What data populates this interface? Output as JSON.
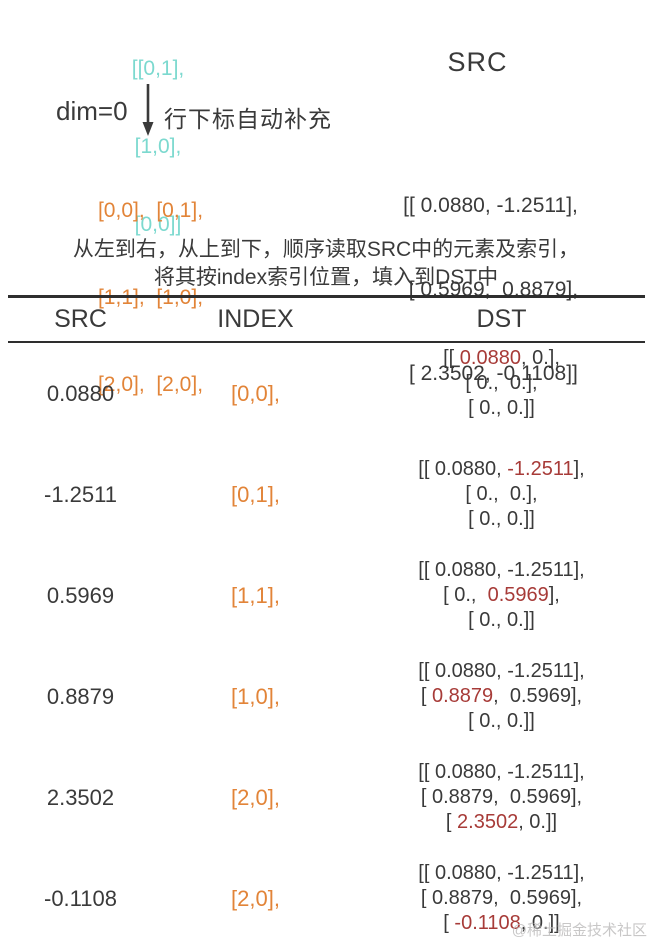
{
  "colors": {
    "cyan": "#7cd9cf",
    "orange": "#e28438",
    "red": "#a73b38",
    "text": "#3a3a3a",
    "watermark": "#c3c2c2"
  },
  "top": {
    "index_matrix": [
      "[[0,1],",
      "[1,0],",
      "[0,0]]"
    ],
    "dim_label": "dim=0",
    "arrow_note": "行下标自动补充",
    "expanded_index": [
      "[0,0],  [0,1],",
      "[1,1],  [1,0],",
      "[2,0],  [2,0],"
    ],
    "src_title": "SRC",
    "src_matrix": [
      "[[ 0.0880, -1.2511],",
      " [ 0.5969,  0.8879],",
      " [ 2.3502, -0.1108]]"
    ]
  },
  "description": [
    "从左到右，从上到下，顺序读取SRC中的元素及索引，",
    "将其按index索引位置，填入到DST中"
  ],
  "table": {
    "headers": [
      "SRC",
      "INDEX",
      "DST"
    ],
    "rows": [
      {
        "src": "0.0880",
        "index": "[0,0],",
        "dst": [
          [
            {
              "t": "[[ "
            },
            {
              "t": "0.0880",
              "hl": true
            },
            {
              "t": ", 0.],"
            }
          ],
          [
            {
              "t": "[ 0.,  0.],"
            }
          ],
          [
            {
              "t": "[ 0., 0.]]"
            }
          ]
        ]
      },
      {
        "src": "-1.2511",
        "index": "[0,1],",
        "dst": [
          [
            {
              "t": "[[ 0.0880, "
            },
            {
              "t": "-1.2511",
              "hl": true
            },
            {
              "t": "],"
            }
          ],
          [
            {
              "t": "[ 0.,  0.],"
            }
          ],
          [
            {
              "t": "[ 0., 0.]]"
            }
          ]
        ]
      },
      {
        "src": "0.5969",
        "index": "[1,1],",
        "dst": [
          [
            {
              "t": "[[ 0.0880, -1.2511],"
            }
          ],
          [
            {
              "t": "[ 0.,  "
            },
            {
              "t": "0.5969",
              "hl": true
            },
            {
              "t": "],"
            }
          ],
          [
            {
              "t": "[ 0., 0.]]"
            }
          ]
        ]
      },
      {
        "src": "0.8879",
        "index": "[1,0],",
        "dst": [
          [
            {
              "t": "[[ 0.0880, -1.2511],"
            }
          ],
          [
            {
              "t": "[ "
            },
            {
              "t": "0.8879",
              "hl": true
            },
            {
              "t": ",  0.5969],"
            }
          ],
          [
            {
              "t": "[ 0., 0.]]"
            }
          ]
        ]
      },
      {
        "src": "2.3502",
        "index": "[2,0],",
        "dst": [
          [
            {
              "t": "[[ 0.0880, -1.2511],"
            }
          ],
          [
            {
              "t": "[ 0.8879,  0.5969],"
            }
          ],
          [
            {
              "t": "[ "
            },
            {
              "t": "2.3502",
              "hl": true
            },
            {
              "t": ", 0.]]"
            }
          ]
        ]
      },
      {
        "src": "-0.1108",
        "index": "[2,0],",
        "dst": [
          [
            {
              "t": "[[ 0.0880, -1.2511],"
            }
          ],
          [
            {
              "t": "[ 0.8879,  0.5969],"
            }
          ],
          [
            {
              "t": "[ "
            },
            {
              "t": "-0.1108",
              "hl": true
            },
            {
              "t": ", 0.]]"
            }
          ]
        ]
      }
    ]
  },
  "watermark": "@稀土掘金技术社区"
}
